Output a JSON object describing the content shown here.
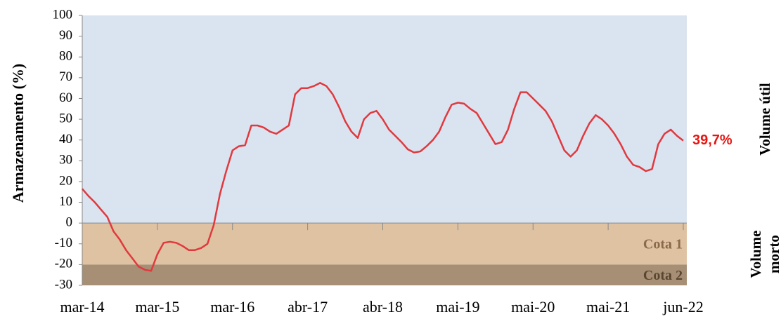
{
  "chart_data": {
    "type": "line",
    "y_label": "Armazenamento (%)",
    "categories": [
      "mar-14",
      null,
      null,
      null,
      null,
      null,
      null,
      null,
      null,
      null,
      null,
      null,
      "mar-15",
      null,
      null,
      null,
      null,
      null,
      null,
      null,
      null,
      null,
      null,
      null,
      "mar-16",
      null,
      null,
      null,
      null,
      null,
      null,
      null,
      null,
      null,
      null,
      null,
      "abr-17",
      null,
      null,
      null,
      null,
      null,
      null,
      null,
      null,
      null,
      null,
      null,
      "abr-18",
      null,
      null,
      null,
      null,
      null,
      null,
      null,
      null,
      null,
      null,
      null,
      "mai-19",
      null,
      null,
      null,
      null,
      null,
      null,
      null,
      null,
      null,
      null,
      null,
      "mai-20",
      null,
      null,
      null,
      null,
      null,
      null,
      null,
      null,
      null,
      null,
      null,
      "mai-21",
      null,
      null,
      null,
      null,
      null,
      null,
      null,
      null,
      null,
      null,
      null,
      "jun-22"
    ],
    "series": [
      {
        "color": "#e0393e",
        "values": [
          16.5,
          13,
          10,
          6.5,
          3,
          -4,
          -8,
          -13,
          -17,
          -21,
          -22.5,
          -23,
          -15,
          -9.5,
          -9,
          -9.5,
          -11,
          -13,
          -13,
          -12,
          -10,
          -1,
          14,
          25,
          35,
          37,
          37.5,
          47,
          47,
          46,
          44,
          43,
          45,
          47,
          62,
          65,
          65,
          66,
          67.5,
          66,
          62,
          56,
          49,
          44,
          41,
          50,
          53,
          54,
          50,
          45,
          42,
          39,
          35.5,
          34,
          34.5,
          37,
          40,
          44,
          51,
          57,
          58,
          57.5,
          55,
          53,
          48,
          43,
          38,
          39,
          45,
          55,
          63,
          63,
          60,
          57,
          54,
          49,
          42,
          35,
          32,
          35,
          42,
          48,
          52,
          50,
          47,
          43,
          38,
          32,
          28,
          27,
          25,
          26,
          38,
          43,
          45,
          42,
          39.7
        ]
      }
    ],
    "last_value_label": "39,7%",
    "ylim": [
      -30,
      100
    ],
    "yticks": [
      -30,
      -20,
      -10,
      0,
      10,
      20,
      30,
      40,
      50,
      60,
      70,
      80,
      90,
      100
    ],
    "zones": [
      {
        "from": 0,
        "to": 100,
        "color": "#dae3f0"
      },
      {
        "name": "Cota 1",
        "from": -20,
        "to": 0,
        "color": "#dfc2a2"
      },
      {
        "name": "Cota 2",
        "from": -30,
        "to": -20,
        "color": "#a68f74"
      }
    ],
    "zone_labels": [
      [
        "Volume útil"
      ],
      [
        "Volume",
        "morto"
      ]
    ]
  }
}
